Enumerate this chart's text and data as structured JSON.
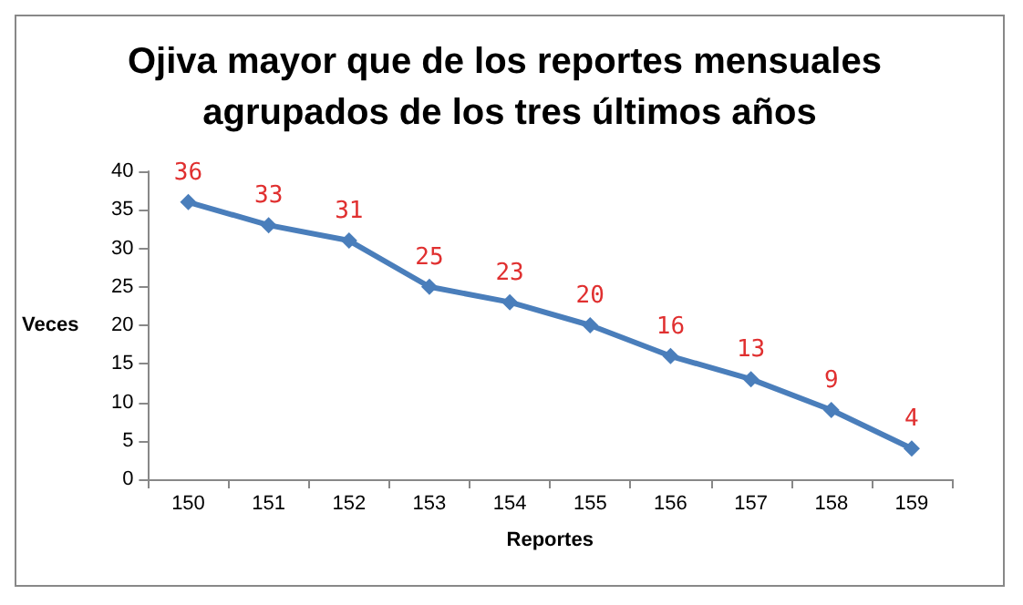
{
  "chart_data": {
    "type": "line",
    "title": "Ojiva mayor que de los reportes mensuales agrupados de los tres últimos años",
    "xlabel": "Reportes",
    "ylabel": "Veces",
    "categories": [
      "150",
      "151",
      "152",
      "153",
      "154",
      "155",
      "156",
      "157",
      "158",
      "159"
    ],
    "series": [
      {
        "color": "#4a7ebb",
        "values": [
          36,
          33,
          31,
          25,
          23,
          20,
          16,
          13,
          9,
          4
        ]
      }
    ],
    "ylim": [
      0,
      40
    ],
    "yticks": [
      0,
      5,
      10,
      15,
      20,
      25,
      30,
      35,
      40
    ],
    "grid": false,
    "marker": "diamond",
    "line_style": "solid",
    "data_labels": true
  }
}
